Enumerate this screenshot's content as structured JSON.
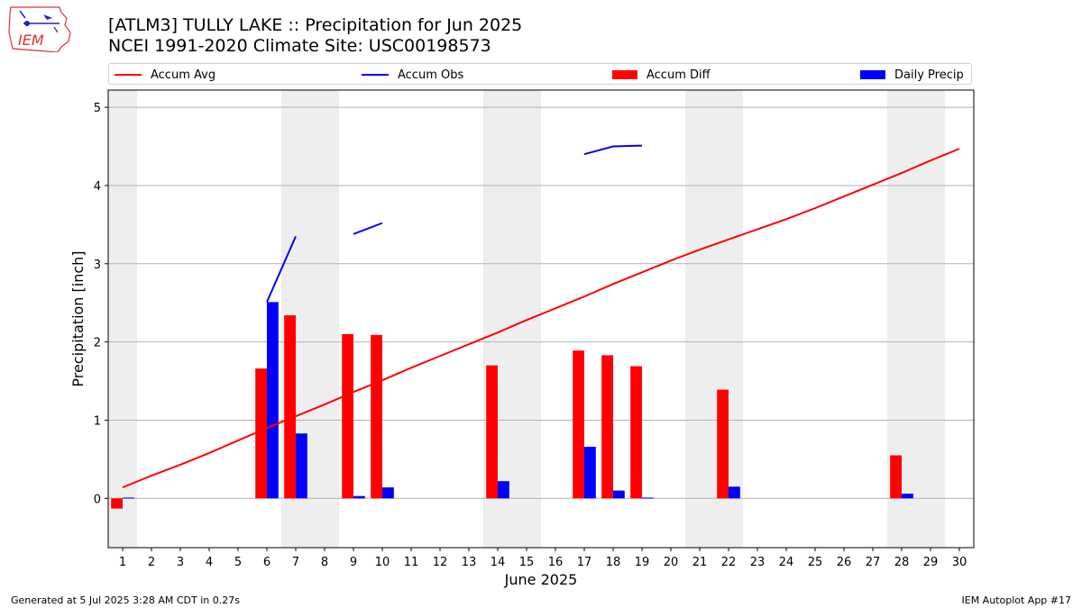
{
  "header": {
    "title_line_1": "[ATLM3] TULLY LAKE :: Precipitation for Jun 2025",
    "title_line_2": "NCEI 1991-2020 Climate Site: USC00198573",
    "logo_text": "IEM"
  },
  "legend": {
    "accum_avg": "Accum Avg",
    "accum_obs": "Accum Obs",
    "accum_diff": "Accum Diff",
    "daily_precip": "Daily Precip"
  },
  "colors": {
    "accum_avg": "#ff0000",
    "accum_obs": "#0000ff",
    "accum_diff": "#ff0000",
    "daily_precip": "#0000ff",
    "weekend_shade": "#eeeeee",
    "grid": "#b0b0b0"
  },
  "chart_data": {
    "type": "bar",
    "xlabel": "June 2025",
    "ylabel": "Precipitation [inch]",
    "xlim": [
      0.5,
      30.5
    ],
    "ylim": [
      -0.63,
      5.22
    ],
    "y_ticks": [
      0,
      1,
      2,
      3,
      4,
      5
    ],
    "x_ticks": [
      1,
      2,
      3,
      4,
      5,
      6,
      7,
      8,
      9,
      10,
      11,
      12,
      13,
      14,
      15,
      16,
      17,
      18,
      19,
      20,
      21,
      22,
      23,
      24,
      25,
      26,
      27,
      28,
      29,
      30
    ],
    "grid": "horizontal",
    "legend_position": "top",
    "weekend_days": [
      1,
      7,
      8,
      14,
      15,
      21,
      22,
      28,
      29
    ],
    "series": [
      {
        "name": "Accum Avg",
        "type": "line",
        "x": [
          1,
          2,
          3,
          4,
          5,
          6,
          7,
          8,
          9,
          10,
          11,
          12,
          13,
          14,
          15,
          16,
          17,
          18,
          19,
          20,
          21,
          22,
          23,
          24,
          25,
          26,
          27,
          28,
          29,
          30
        ],
        "values": [
          0.14,
          0.29,
          0.43,
          0.58,
          0.74,
          0.9,
          1.05,
          1.2,
          1.36,
          1.51,
          1.67,
          1.82,
          1.97,
          2.12,
          2.28,
          2.43,
          2.58,
          2.74,
          2.89,
          3.04,
          3.18,
          3.31,
          3.44,
          3.57,
          3.71,
          3.86,
          4.01,
          4.16,
          4.32,
          4.47
        ]
      },
      {
        "name": "Accum Obs",
        "type": "line",
        "segments": [
          {
            "x": [
              6,
              7
            ],
            "values": [
              2.51,
              3.35
            ]
          },
          {
            "x": [
              9,
              10
            ],
            "values": [
              3.38,
              3.52
            ]
          },
          {
            "x": [
              17,
              18,
              19
            ],
            "values": [
              4.4,
              4.5,
              4.51
            ]
          }
        ]
      },
      {
        "name": "Accum Diff",
        "type": "bar",
        "x": [
          1,
          6,
          7,
          9,
          10,
          14,
          17,
          18,
          19,
          22,
          28
        ],
        "values": [
          -0.13,
          1.66,
          2.34,
          2.1,
          2.09,
          1.7,
          1.89,
          1.83,
          1.69,
          1.39,
          0.55
        ]
      },
      {
        "name": "Daily Precip",
        "type": "bar",
        "x": [
          1,
          6,
          7,
          9,
          10,
          14,
          17,
          18,
          19,
          22,
          28
        ],
        "values": [
          0.01,
          2.51,
          0.83,
          0.03,
          0.14,
          0.22,
          0.66,
          0.1,
          0.01,
          0.15,
          0.06
        ]
      }
    ]
  },
  "footer": {
    "generated": "Generated at 5 Jul 2025 3:28 AM CDT in 0.27s",
    "app": "IEM Autoplot App #17"
  }
}
